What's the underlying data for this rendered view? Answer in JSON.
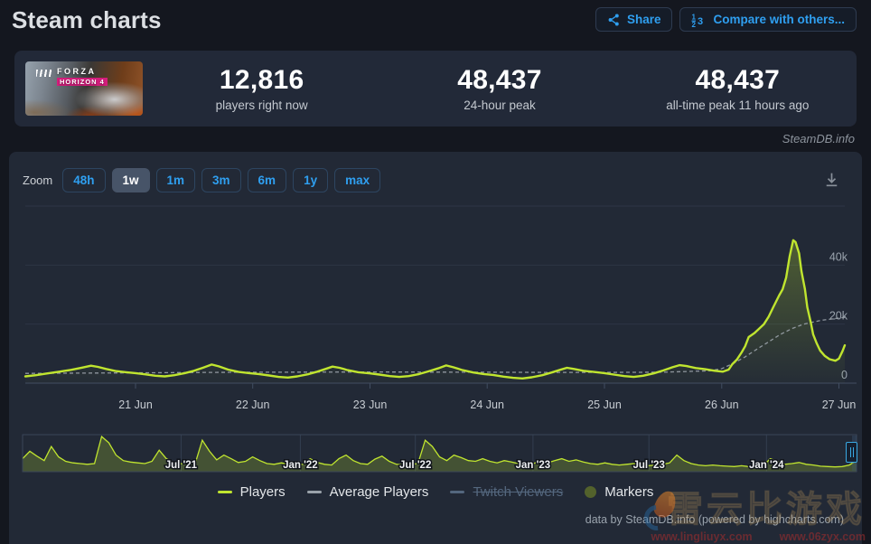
{
  "header": {
    "title": "Steam charts",
    "share_label": "Share",
    "compare_label": "Compare with others..."
  },
  "stats": {
    "game": {
      "title_line1": "FORZA",
      "title_line2": "HORIZON 4"
    },
    "items": [
      {
        "value": "12,816",
        "label": "players right now"
      },
      {
        "value": "48,437",
        "label": "24-hour peak"
      },
      {
        "value": "48,437",
        "label": "all-time peak 11 hours ago"
      }
    ]
  },
  "watermark_site": "SteamDB.info",
  "toolbar": {
    "zoom_label": "Zoom",
    "ranges": [
      "48h",
      "1w",
      "1m",
      "3m",
      "6m",
      "1y",
      "max"
    ],
    "active_range": "1w"
  },
  "chart_data": {
    "type": "line",
    "title": "",
    "main": {
      "ylim": [
        0,
        60000
      ],
      "xlim": [
        20.06,
        27.05
      ],
      "grid": true,
      "yaxis_side": "right",
      "yticks": [
        {
          "v": 0,
          "label": "0"
        },
        {
          "v": 20000,
          "label": "20k"
        },
        {
          "v": 40000,
          "label": "40k"
        },
        {
          "v": 60000,
          "label": ""
        }
      ],
      "xticks": [
        {
          "v": 21,
          "label": "21 Jun"
        },
        {
          "v": 22,
          "label": "22 Jun"
        },
        {
          "v": 23,
          "label": "23 Jun"
        },
        {
          "v": 24,
          "label": "24 Jun"
        },
        {
          "v": 25,
          "label": "25 Jun"
        },
        {
          "v": 26,
          "label": "26 Jun"
        },
        {
          "v": 27,
          "label": "27 Jun"
        }
      ],
      "series": [
        {
          "name": "Players",
          "color": "#c0e52f",
          "dashed": false,
          "points": [
            [
              20.06,
              2300
            ],
            [
              20.15,
              2700
            ],
            [
              20.25,
              3300
            ],
            [
              20.35,
              3900
            ],
            [
              20.45,
              4500
            ],
            [
              20.55,
              5300
            ],
            [
              20.62,
              5900
            ],
            [
              20.68,
              5500
            ],
            [
              20.75,
              4800
            ],
            [
              20.83,
              4100
            ],
            [
              20.92,
              3700
            ],
            [
              21.0,
              3400
            ],
            [
              21.08,
              3000
            ],
            [
              21.17,
              2500
            ],
            [
              21.25,
              2300
            ],
            [
              21.33,
              2700
            ],
            [
              21.42,
              3400
            ],
            [
              21.5,
              4200
            ],
            [
              21.58,
              5300
            ],
            [
              21.65,
              6300
            ],
            [
              21.71,
              5700
            ],
            [
              21.79,
              4600
            ],
            [
              21.88,
              3800
            ],
            [
              21.97,
              3400
            ],
            [
              22.05,
              3100
            ],
            [
              22.14,
              2600
            ],
            [
              22.22,
              2100
            ],
            [
              22.3,
              1900
            ],
            [
              22.38,
              2300
            ],
            [
              22.47,
              3000
            ],
            [
              22.55,
              3900
            ],
            [
              22.62,
              4800
            ],
            [
              22.68,
              5600
            ],
            [
              22.74,
              5200
            ],
            [
              22.81,
              4400
            ],
            [
              22.9,
              3700
            ],
            [
              23.0,
              3300
            ],
            [
              23.08,
              2900
            ],
            [
              23.17,
              2400
            ],
            [
              23.25,
              2100
            ],
            [
              23.33,
              2400
            ],
            [
              23.42,
              3100
            ],
            [
              23.5,
              4000
            ],
            [
              23.58,
              5000
            ],
            [
              23.65,
              6000
            ],
            [
              23.71,
              5400
            ],
            [
              23.79,
              4400
            ],
            [
              23.88,
              3600
            ],
            [
              23.97,
              3100
            ],
            [
              24.05,
              2800
            ],
            [
              24.14,
              2200
            ],
            [
              24.22,
              1800
            ],
            [
              24.3,
              1600
            ],
            [
              24.38,
              2000
            ],
            [
              24.47,
              2700
            ],
            [
              24.55,
              3600
            ],
            [
              24.62,
              4500
            ],
            [
              24.68,
              5200
            ],
            [
              24.74,
              4800
            ],
            [
              24.82,
              4200
            ],
            [
              24.91,
              3800
            ],
            [
              25.0,
              3400
            ],
            [
              25.08,
              2900
            ],
            [
              25.17,
              2400
            ],
            [
              25.25,
              2100
            ],
            [
              25.33,
              2500
            ],
            [
              25.42,
              3300
            ],
            [
              25.5,
              4300
            ],
            [
              25.58,
              5400
            ],
            [
              25.64,
              6100
            ],
            [
              25.7,
              5800
            ],
            [
              25.78,
              5100
            ],
            [
              25.86,
              4700
            ],
            [
              25.94,
              4200
            ],
            [
              26.01,
              3900
            ],
            [
              26.06,
              4600
            ],
            [
              26.09,
              6400
            ],
            [
              26.13,
              8000
            ],
            [
              26.17,
              10400
            ],
            [
              26.2,
              12500
            ],
            [
              26.23,
              15600
            ],
            [
              26.28,
              17000
            ],
            [
              26.32,
              18500
            ],
            [
              26.36,
              20000
            ],
            [
              26.4,
              22500
            ],
            [
              26.44,
              25700
            ],
            [
              26.49,
              29700
            ],
            [
              26.52,
              31800
            ],
            [
              26.55,
              35800
            ],
            [
              26.58,
              43000
            ],
            [
              26.61,
              48437
            ],
            [
              26.63,
              47800
            ],
            [
              26.66,
              44000
            ],
            [
              26.68,
              38000
            ],
            [
              26.71,
              31800
            ],
            [
              26.73,
              25700
            ],
            [
              26.76,
              20500
            ],
            [
              26.78,
              16500
            ],
            [
              26.81,
              13500
            ],
            [
              26.84,
              11000
            ],
            [
              26.88,
              9200
            ],
            [
              26.92,
              8100
            ],
            [
              26.97,
              7600
            ],
            [
              27.0,
              8300
            ],
            [
              27.03,
              10800
            ],
            [
              27.05,
              12816
            ]
          ]
        },
        {
          "name": "Average Players",
          "color": "#9aa2aa",
          "dashed": true,
          "points": [
            [
              20.06,
              3300
            ],
            [
              20.5,
              3400
            ],
            [
              21.0,
              3500
            ],
            [
              21.5,
              3600
            ],
            [
              22.0,
              3700
            ],
            [
              22.5,
              3750
            ],
            [
              23.0,
              3800
            ],
            [
              23.5,
              3750
            ],
            [
              24.0,
              3700
            ],
            [
              24.5,
              3650
            ],
            [
              25.0,
              3650
            ],
            [
              25.5,
              3700
            ],
            [
              25.9,
              4200
            ],
            [
              26.0,
              4900
            ],
            [
              26.1,
              6700
            ],
            [
              26.2,
              8900
            ],
            [
              26.3,
              11500
            ],
            [
              26.4,
              14000
            ],
            [
              26.5,
              16500
            ],
            [
              26.6,
              18500
            ],
            [
              26.7,
              20000
            ],
            [
              26.85,
              21300
            ],
            [
              27.05,
              22300
            ]
          ]
        }
      ]
    },
    "navigator": {
      "range_labels": [
        {
          "pos": 0.19,
          "label": "Jul '21"
        },
        {
          "pos": 0.333,
          "label": "Jan '22"
        },
        {
          "pos": 0.471,
          "label": "Jul '22"
        },
        {
          "pos": 0.612,
          "label": "Jan '23"
        },
        {
          "pos": 0.751,
          "label": "Jul '23"
        },
        {
          "pos": 0.892,
          "label": "Jan '24"
        }
      ],
      "values": [
        35,
        55,
        42,
        30,
        68,
        40,
        28,
        24,
        22,
        20,
        22,
        95,
        78,
        45,
        30,
        26,
        24,
        22,
        28,
        58,
        35,
        25,
        22,
        20,
        22,
        85,
        55,
        32,
        45,
        35,
        25,
        28,
        40,
        30,
        22,
        20,
        24,
        20,
        18,
        20,
        35,
        25,
        20,
        18,
        35,
        45,
        30,
        22,
        20,
        34,
        42,
        28,
        20,
        18,
        20,
        22,
        85,
        68,
        40,
        30,
        45,
        38,
        30,
        28,
        35,
        28,
        24,
        30,
        26,
        22,
        20,
        22,
        28,
        24,
        30,
        35,
        28,
        32,
        26,
        22,
        20,
        24,
        20,
        18,
        20,
        22,
        18,
        16,
        18,
        20,
        24,
        45,
        30,
        22,
        18,
        16,
        18,
        16,
        15,
        14,
        16,
        14,
        15,
        16,
        35,
        28,
        20,
        22,
        25,
        20,
        18,
        15,
        14,
        13,
        14,
        18,
        30
      ]
    }
  },
  "legend": {
    "items": [
      {
        "label": "Players",
        "swatch": "line",
        "color": "#c0e52f",
        "disabled": false
      },
      {
        "label": "Average Players",
        "swatch": "line",
        "color": "#9aa2aa",
        "disabled": false
      },
      {
        "label": "Twitch Viewers",
        "swatch": "line",
        "color": "#54677e",
        "disabled": true
      },
      {
        "label": "Markers",
        "swatch": "circle",
        "color": "#53622c",
        "disabled": false
      }
    ]
  },
  "credits": "data by SteamDB.info (powered by highcharts.com)",
  "overlay_watermark": {
    "cn_text": "雷云比游戏",
    "urls": [
      "www.lingliuyx.com",
      "www.06zyx.com"
    ]
  }
}
